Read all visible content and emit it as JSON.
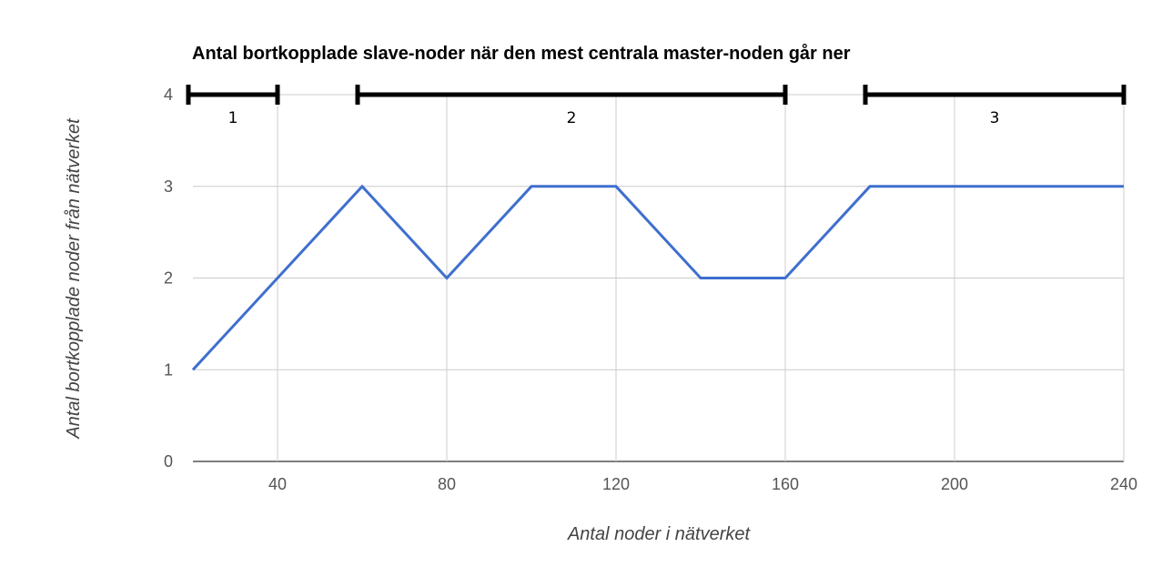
{
  "chart_data": {
    "type": "line",
    "title": "Antal bortkopplade slave-noder när den mest centrala master-noden går ner",
    "xlabel": "Antal noder i nätverket",
    "ylabel": "Antal bortkopplade noder från nätverket",
    "xlim": [
      20,
      240
    ],
    "ylim": [
      0,
      4
    ],
    "x_ticks": [
      40,
      80,
      120,
      160,
      200,
      240
    ],
    "y_ticks": [
      0,
      1,
      2,
      3,
      4
    ],
    "grid": true,
    "legend": "none",
    "series": [
      {
        "color": "#3f6fce",
        "x": [
          20,
          40,
          60,
          80,
          100,
          120,
          140,
          160,
          180,
          200,
          220,
          240
        ],
        "y": [
          1,
          2,
          3,
          2,
          3,
          3,
          2,
          2,
          3,
          3,
          3,
          3
        ]
      }
    ],
    "annotations": [
      {
        "label": "1",
        "x_range": [
          20,
          40
        ],
        "y": 4
      },
      {
        "label": "2",
        "x_range": [
          60,
          160
        ],
        "y": 4
      },
      {
        "label": "3",
        "x_range": [
          180,
          240
        ],
        "y": 4
      }
    ],
    "colors": {
      "grid": "#cccccc",
      "baseline": "#333333",
      "annotation": "#000000"
    }
  }
}
